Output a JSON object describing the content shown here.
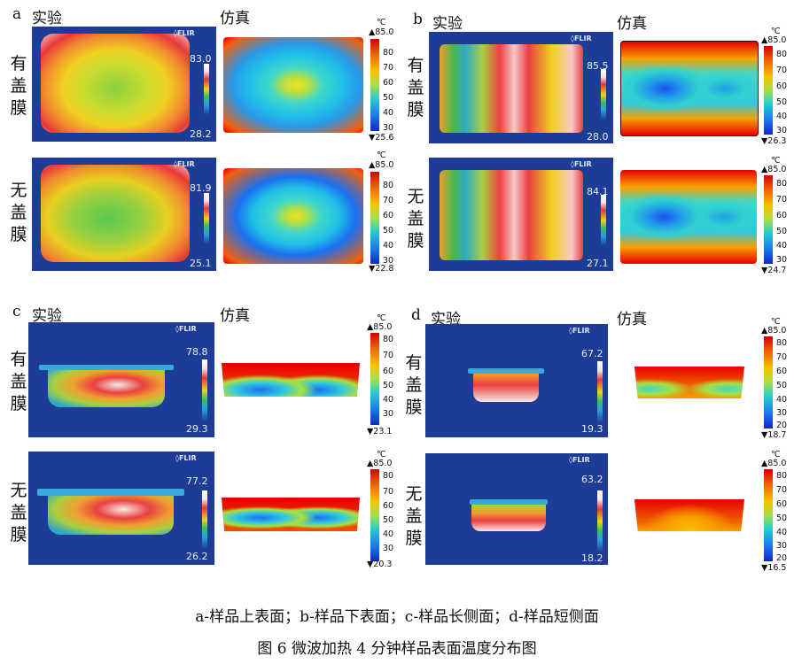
{
  "panels": {
    "a": {
      "letter": "a",
      "exp": "实验",
      "sim": "仿真",
      "top": {
        "side": [
          "有",
          "盖",
          "膜"
        ],
        "ir_max": "83.0",
        "ir_min": "28.2",
        "bar_max": "▲85.0",
        "bar_min": "▼25.6"
      },
      "bottom": {
        "side": [
          "无",
          "盖",
          "膜"
        ],
        "ir_max": "81.9",
        "ir_min": "25.1",
        "bar_max": "▲85.0",
        "bar_min": "▼22.8"
      }
    },
    "b": {
      "letter": "b",
      "exp": "实验",
      "sim": "仿真",
      "top": {
        "side": [
          "有",
          "盖",
          "膜"
        ],
        "ir_max": "85.5",
        "ir_min": "28.0",
        "bar_max": "▲85.0",
        "bar_min": "▼26.3"
      },
      "bottom": {
        "side": [
          "无",
          "盖",
          "膜"
        ],
        "ir_max": "84.1",
        "ir_min": "27.1",
        "bar_max": "▲85.0",
        "bar_min": "▼24.7"
      }
    },
    "c": {
      "letter": "c",
      "exp": "实验",
      "sim": "仿真",
      "top": {
        "side": [
          "有",
          "盖",
          "膜"
        ],
        "ir_max": "78.8",
        "ir_min": "29.3",
        "bar_max": "▲85.0",
        "bar_min": "▼23.1"
      },
      "bottom": {
        "side": [
          "无",
          "盖",
          "膜"
        ],
        "ir_max": "77.2",
        "ir_min": "26.2",
        "bar_max": "▲85.0",
        "bar_min": "▼20.3"
      }
    },
    "d": {
      "letter": "d",
      "exp": "实验",
      "sim": "仿真",
      "top": {
        "side": [
          "有",
          "盖",
          "膜"
        ],
        "ir_max": "67.2",
        "ir_min": "19.3",
        "bar_max": "▲85.0",
        "bar_min": "▼18.7"
      },
      "bottom": {
        "side": [
          "无",
          "盖",
          "膜"
        ],
        "ir_max": "63.2",
        "ir_min": "18.2",
        "bar_max": "▲85.0",
        "bar_min": "▼16.5"
      }
    }
  },
  "flir": "◊FLIR",
  "unit": "℃",
  "ticks_30": [
    "80",
    "70",
    "60",
    "50",
    "40",
    "30"
  ],
  "ticks_20": [
    "80",
    "70",
    "60",
    "50",
    "40",
    "30",
    "20"
  ],
  "caption_sub": "a-样品上表面；b-样品下表面；c-样品长侧面；d-样品短侧面",
  "caption_main": "图 6  微波加热 4 分钟样品表面温度分布图",
  "colors": {
    "ir_bg": "#1c3c96",
    "hot": "#e02020",
    "cold": "#1028c8"
  }
}
